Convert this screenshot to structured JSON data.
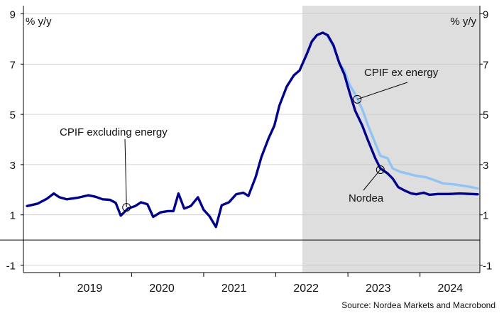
{
  "chart_data": {
    "type": "line",
    "left_axis_label": "% y/y",
    "right_axis_label": "% y/y",
    "y_ticks": [
      9,
      7,
      5,
      3,
      1,
      -1
    ],
    "ylim": [
      -1.2,
      9
    ],
    "xlim": [
      2018.5,
      2024.83
    ],
    "year_labels": [
      "2019",
      "2020",
      "2021",
      "2022",
      "2023",
      "2024"
    ],
    "shaded_region": {
      "start": 2022.37,
      "end": 2024.83,
      "color": "#dedede"
    },
    "zero_line": 0,
    "grid": true,
    "source": "Source: Nordea Markets and Macrobond",
    "series": [
      {
        "name": "CPIF excluding energy",
        "color": "#00008c",
        "points": [
          [
            2018.55,
            1.35
          ],
          [
            2018.7,
            1.45
          ],
          [
            2018.83,
            1.65
          ],
          [
            2018.92,
            1.85
          ],
          [
            2019.0,
            1.7
          ],
          [
            2019.1,
            1.62
          ],
          [
            2019.25,
            1.68
          ],
          [
            2019.4,
            1.78
          ],
          [
            2019.5,
            1.72
          ],
          [
            2019.6,
            1.62
          ],
          [
            2019.7,
            1.6
          ],
          [
            2019.78,
            1.48
          ],
          [
            2019.85,
            0.97
          ],
          [
            2019.95,
            1.25
          ],
          [
            2020.05,
            1.35
          ],
          [
            2020.13,
            1.5
          ],
          [
            2020.22,
            1.42
          ],
          [
            2020.3,
            0.92
          ],
          [
            2020.4,
            1.1
          ],
          [
            2020.5,
            1.15
          ],
          [
            2020.58,
            1.15
          ],
          [
            2020.65,
            1.85
          ],
          [
            2020.73,
            1.25
          ],
          [
            2020.82,
            1.35
          ],
          [
            2020.92,
            1.7
          ],
          [
            2021.0,
            1.2
          ],
          [
            2021.08,
            0.95
          ],
          [
            2021.17,
            0.52
          ],
          [
            2021.25,
            1.38
          ],
          [
            2021.35,
            1.5
          ],
          [
            2021.45,
            1.82
          ],
          [
            2021.55,
            1.88
          ],
          [
            2021.62,
            1.75
          ],
          [
            2021.72,
            2.5
          ],
          [
            2021.8,
            3.3
          ],
          [
            2021.9,
            4.05
          ],
          [
            2021.98,
            4.55
          ],
          [
            2022.05,
            5.35
          ],
          [
            2022.15,
            6.1
          ],
          [
            2022.25,
            6.55
          ],
          [
            2022.33,
            6.75
          ],
          [
            2022.43,
            7.4
          ],
          [
            2022.5,
            7.9
          ],
          [
            2022.57,
            8.15
          ],
          [
            2022.65,
            8.25
          ],
          [
            2022.72,
            8.15
          ],
          [
            2022.8,
            7.75
          ],
          [
            2022.88,
            7.05
          ],
          [
            2022.95,
            6.6
          ],
          [
            2023.02,
            5.9
          ],
          [
            2023.1,
            5.15
          ],
          [
            2023.2,
            4.55
          ],
          [
            2023.28,
            3.95
          ],
          [
            2023.38,
            3.25
          ],
          [
            2023.45,
            2.85
          ],
          [
            2023.55,
            2.65
          ],
          [
            2023.62,
            2.45
          ],
          [
            2023.7,
            2.1
          ],
          [
            2023.8,
            1.95
          ],
          [
            2023.88,
            1.85
          ],
          [
            2023.95,
            1.82
          ],
          [
            2024.05,
            1.88
          ],
          [
            2024.13,
            1.8
          ],
          [
            2024.25,
            1.83
          ],
          [
            2024.4,
            1.83
          ],
          [
            2024.55,
            1.85
          ],
          [
            2024.8,
            1.82
          ]
        ]
      },
      {
        "name": "CPIF ex energy",
        "color": "#8fc4f4",
        "points": [
          [
            2022.72,
            8.1
          ],
          [
            2022.8,
            7.7
          ],
          [
            2022.88,
            7.05
          ],
          [
            2022.95,
            6.75
          ],
          [
            2023.02,
            6.2
          ],
          [
            2023.1,
            5.8
          ],
          [
            2023.2,
            5.2
          ],
          [
            2023.28,
            4.55
          ],
          [
            2023.38,
            3.85
          ],
          [
            2023.45,
            3.35
          ],
          [
            2023.55,
            3.25
          ],
          [
            2023.62,
            2.85
          ],
          [
            2023.72,
            2.72
          ],
          [
            2023.82,
            2.65
          ],
          [
            2023.95,
            2.55
          ],
          [
            2024.08,
            2.5
          ],
          [
            2024.2,
            2.38
          ],
          [
            2024.32,
            2.25
          ],
          [
            2024.5,
            2.2
          ],
          [
            2024.68,
            2.12
          ],
          [
            2024.8,
            2.05
          ]
        ]
      },
      {
        "name": "Nordea",
        "color": "#00008c",
        "points": []
      }
    ],
    "annotations": [
      {
        "text": "CPIF excluding energy",
        "series": "CPIF excluding energy",
        "point": [
          2019.93,
          1.3
        ]
      },
      {
        "text": "CPIF ex energy",
        "series": "CPIF ex energy",
        "point": [
          2023.13,
          5.6
        ]
      },
      {
        "text": "Nordea",
        "series": "Nordea",
        "point": [
          2023.45,
          2.8
        ]
      }
    ]
  }
}
